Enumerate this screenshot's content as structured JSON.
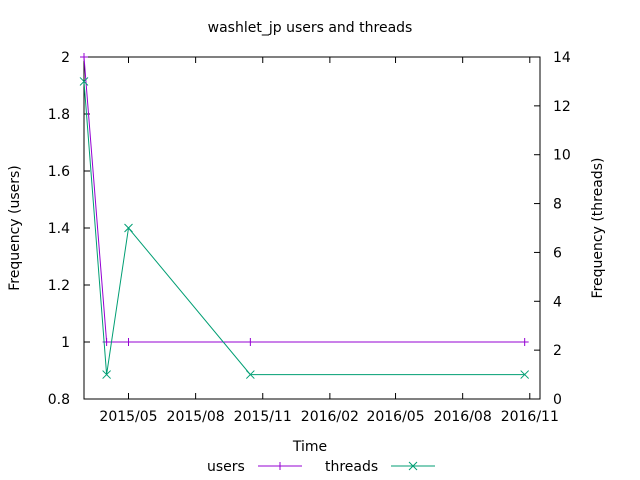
{
  "chart_data": {
    "type": "line",
    "title": "washlet_jp users and threads",
    "xlabel": "Time",
    "ylabel_left": "Frequency (users)",
    "ylabel_right": "Frequency (threads)",
    "x_ticks": [
      "2015/05",
      "2015/08",
      "2015/11",
      "2016/02",
      "2016/05",
      "2016/08",
      "2016/11"
    ],
    "x_range": [
      "2015-03-01",
      "2016-11-15"
    ],
    "ylim_left": [
      0.8,
      2
    ],
    "y_ticks_left": [
      "0.8",
      "1",
      "1.2",
      "1.4",
      "1.6",
      "1.8",
      "2"
    ],
    "ylim_right": [
      0,
      14
    ],
    "y_ticks_right": [
      "0",
      "2",
      "4",
      "6",
      "8",
      "10",
      "12",
      "14"
    ],
    "grid": false,
    "legend_position": "bottom-center",
    "series": [
      {
        "name": "users",
        "axis": "left",
        "color": "#9400d3",
        "marker": "plus",
        "x": [
          "2015-03-01",
          "2015-04-01",
          "2015-05-01",
          "2015-10-15",
          "2016-10-25"
        ],
        "values": [
          2,
          1,
          1,
          1,
          1
        ]
      },
      {
        "name": "threads",
        "axis": "right",
        "color": "#009e73",
        "marker": "cross",
        "x": [
          "2015-03-01",
          "2015-04-01",
          "2015-05-01",
          "2015-10-15",
          "2016-10-25"
        ],
        "values": [
          13,
          1,
          7,
          1,
          1
        ]
      }
    ]
  }
}
